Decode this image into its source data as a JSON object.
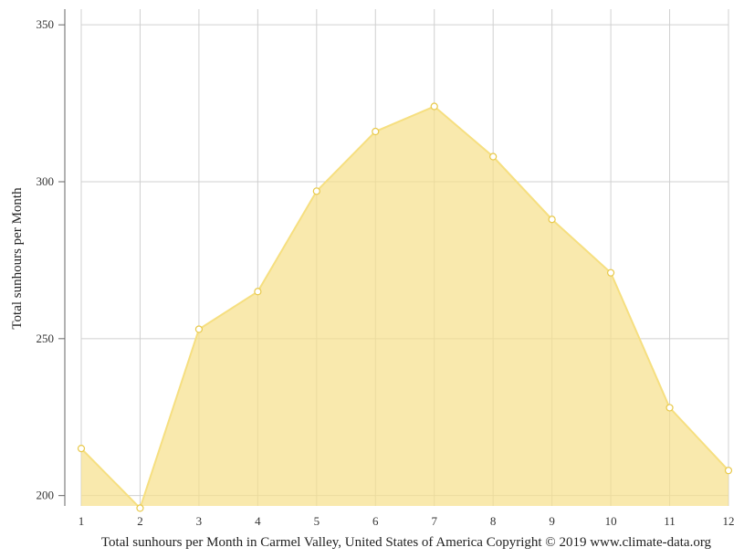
{
  "chart_data": {
    "type": "area",
    "x": [
      "1",
      "2",
      "3",
      "4",
      "5",
      "6",
      "7",
      "8",
      "9",
      "10",
      "11",
      "12"
    ],
    "series": [
      {
        "values": [
          215,
          196,
          253,
          265,
          297,
          316,
          324,
          308,
          288,
          271,
          228,
          208
        ]
      }
    ],
    "ylabel": "Total sunhours per Month",
    "caption": "Total sunhours per Month in Carmel Valley, United States of America Copyright © 2019 www.climate-data.org",
    "yticks": [
      200,
      250,
      300,
      350
    ],
    "ylim": [
      196.7,
      355
    ],
    "grid": true,
    "colors": {
      "fill": "#f7e08a",
      "line": "#f6df80",
      "marker_stroke": "#e8c94a",
      "grid": "#d0d0d0",
      "axis": "#666666"
    }
  }
}
